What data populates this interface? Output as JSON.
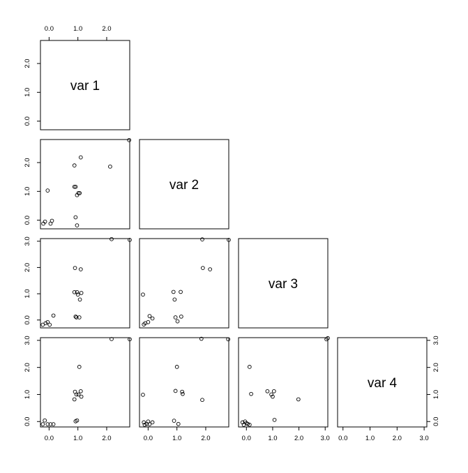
{
  "chart_data": {
    "type": "scatter",
    "layout": "pairs-lower-triangle",
    "variables": [
      "var 1",
      "var 2",
      "var 3",
      "var 4"
    ],
    "axis_ranges": {
      "var 1": [
        -0.3,
        2.8
      ],
      "var 2": [
        -0.3,
        2.8
      ],
      "var 3": [
        -0.3,
        3.1
      ],
      "var 4": [
        -0.2,
        3.1
      ]
    },
    "tick_labels": [
      "0.0",
      "1.0",
      "2.0",
      "3.0"
    ],
    "grid": false,
    "panels": [
      {
        "x": "var 1",
        "y": "var 2",
        "points": [
          [
            -0.14,
            -0.05
          ],
          [
            -0.05,
            1.03
          ],
          [
            0.1,
            -0.02
          ],
          [
            -0.2,
            -0.12
          ],
          [
            0.05,
            -0.12
          ],
          [
            0.88,
            1.9
          ],
          [
            0.88,
            1.16
          ],
          [
            0.92,
            1.16
          ],
          [
            0.97,
            0.87
          ],
          [
            1.02,
            0.94
          ],
          [
            1.06,
            0.94
          ],
          [
            0.92,
            0.1
          ],
          [
            0.97,
            -0.18
          ],
          [
            1.1,
            2.18
          ],
          [
            2.12,
            1.86
          ],
          [
            2.78,
            2.78
          ]
        ]
      },
      {
        "x": "var 1",
        "y": "var 3",
        "points": [
          [
            -0.22,
            -0.18
          ],
          [
            -0.12,
            -0.12
          ],
          [
            -0.05,
            -0.08
          ],
          [
            0.02,
            -0.18
          ],
          [
            0.15,
            0.17
          ],
          [
            0.9,
            1.98
          ],
          [
            0.88,
            1.06
          ],
          [
            0.97,
            1.06
          ],
          [
            1.0,
            0.97
          ],
          [
            1.07,
            0.78
          ],
          [
            1.12,
            1.03
          ],
          [
            0.92,
            0.13
          ],
          [
            0.95,
            0.1
          ],
          [
            1.05,
            0.1
          ],
          [
            1.1,
            1.93
          ],
          [
            2.17,
            3.08
          ],
          [
            2.8,
            3.05
          ]
        ]
      },
      {
        "x": "var 2",
        "y": "var 3",
        "points": [
          [
            -0.18,
            0.97
          ],
          [
            -0.15,
            -0.17
          ],
          [
            -0.1,
            -0.12
          ],
          [
            0.0,
            -0.08
          ],
          [
            0.05,
            0.15
          ],
          [
            0.15,
            0.06
          ],
          [
            0.88,
            1.07
          ],
          [
            0.92,
            0.78
          ],
          [
            0.95,
            0.1
          ],
          [
            1.02,
            -0.05
          ],
          [
            1.13,
            1.07
          ],
          [
            1.15,
            0.13
          ],
          [
            1.88,
            3.07
          ],
          [
            1.9,
            1.98
          ],
          [
            2.15,
            1.93
          ],
          [
            2.8,
            3.05
          ]
        ]
      },
      {
        "x": "var 1",
        "y": "var 4",
        "points": [
          [
            -0.22,
            -0.1
          ],
          [
            -0.15,
            0.04
          ],
          [
            -0.05,
            -0.1
          ],
          [
            0.05,
            -0.1
          ],
          [
            0.15,
            -0.1
          ],
          [
            0.9,
            1.1
          ],
          [
            0.88,
            0.82
          ],
          [
            0.95,
            1.0
          ],
          [
            1.02,
            1.0
          ],
          [
            1.1,
            1.12
          ],
          [
            1.12,
            0.92
          ],
          [
            1.05,
            2.02
          ],
          [
            0.92,
            0.01
          ],
          [
            0.97,
            0.04
          ],
          [
            2.17,
            3.05
          ],
          [
            2.8,
            3.04
          ]
        ]
      },
      {
        "x": "var 2",
        "y": "var 4",
        "points": [
          [
            -0.18,
            0.99
          ],
          [
            -0.15,
            -0.03
          ],
          [
            -0.12,
            -0.12
          ],
          [
            -0.05,
            -0.09
          ],
          [
            0.0,
            0.0
          ],
          [
            0.05,
            -0.1
          ],
          [
            0.15,
            -0.03
          ],
          [
            0.9,
            0.03
          ],
          [
            0.95,
            1.13
          ],
          [
            1.0,
            2.02
          ],
          [
            1.05,
            -0.09
          ],
          [
            1.18,
            1.1
          ],
          [
            1.2,
            1.02
          ],
          [
            1.85,
            3.06
          ],
          [
            1.88,
            0.8
          ],
          [
            2.78,
            3.04
          ]
        ]
      },
      {
        "x": "var 3",
        "y": "var 4",
        "points": [
          [
            -0.15,
            -0.03
          ],
          [
            -0.1,
            -0.12
          ],
          [
            -0.05,
            0.0
          ],
          [
            0.0,
            -0.06
          ],
          [
            0.05,
            -0.09
          ],
          [
            0.12,
            -0.12
          ],
          [
            0.12,
            2.02
          ],
          [
            0.18,
            1.02
          ],
          [
            0.8,
            1.12
          ],
          [
            0.95,
            1.0
          ],
          [
            1.0,
            0.92
          ],
          [
            1.05,
            1.12
          ],
          [
            1.07,
            0.06
          ],
          [
            1.98,
            0.82
          ],
          [
            3.05,
            3.04
          ],
          [
            3.1,
            3.08
          ]
        ]
      }
    ]
  }
}
